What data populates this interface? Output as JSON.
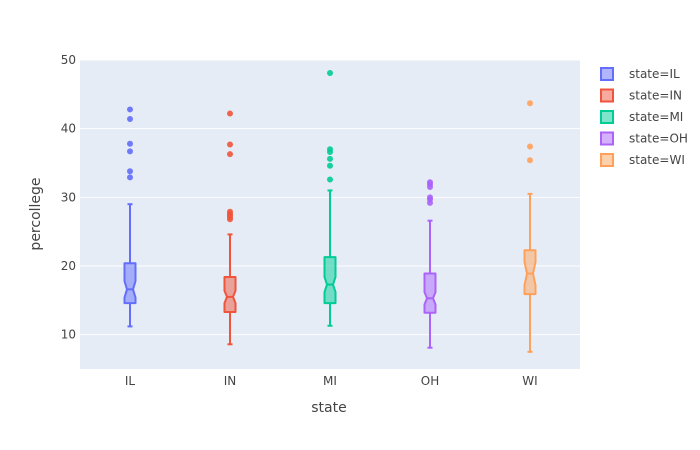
{
  "chart_data": {
    "type": "box",
    "notched": true,
    "xlabel": "state",
    "ylabel": "percollege",
    "ylim": [
      5,
      50
    ],
    "yticks": [
      10,
      20,
      30,
      40,
      50
    ],
    "categories": [
      "IL",
      "IN",
      "MI",
      "OH",
      "WI"
    ],
    "grid": true,
    "legend_position": "top-right",
    "series": [
      {
        "name": "state=IL",
        "category": "IL",
        "color": "#636efa",
        "min": 11.2,
        "q1": 14.6,
        "median": 16.6,
        "q3": 20.4,
        "max": 29.0,
        "notch_low": 15.4,
        "notch_high": 17.8,
        "outliers": [
          32.9,
          33.8,
          36.7,
          37.8,
          41.4,
          42.8
        ]
      },
      {
        "name": "state=IN",
        "category": "IN",
        "color": "#ef553b",
        "min": 8.6,
        "q1": 13.3,
        "median": 15.5,
        "q3": 18.4,
        "max": 24.6,
        "notch_low": 14.6,
        "notch_high": 16.4,
        "outliers": [
          26.8,
          27.1,
          27.4,
          27.6,
          27.9,
          36.3,
          37.7,
          42.2
        ]
      },
      {
        "name": "state=MI",
        "category": "MI",
        "color": "#00cc96",
        "min": 11.3,
        "q1": 14.6,
        "median": 17.3,
        "q3": 21.3,
        "max": 31.0,
        "notch_low": 16.2,
        "notch_high": 18.4,
        "outliers": [
          32.6,
          34.6,
          35.6,
          36.6,
          37.0,
          48.1
        ]
      },
      {
        "name": "state=OH",
        "category": "OH",
        "color": "#ab63fa",
        "min": 8.1,
        "q1": 13.2,
        "median": 15.3,
        "q3": 18.9,
        "max": 26.6,
        "notch_low": 14.4,
        "notch_high": 16.2,
        "outliers": [
          29.2,
          29.7,
          30.0,
          31.5,
          31.9,
          32.2
        ]
      },
      {
        "name": "state=WI",
        "category": "WI",
        "color": "#ffa15a",
        "min": 7.5,
        "q1": 15.9,
        "median": 18.9,
        "q3": 22.3,
        "max": 30.5,
        "notch_low": 17.2,
        "notch_high": 20.6,
        "outliers": [
          35.4,
          37.4,
          43.7
        ]
      }
    ]
  }
}
